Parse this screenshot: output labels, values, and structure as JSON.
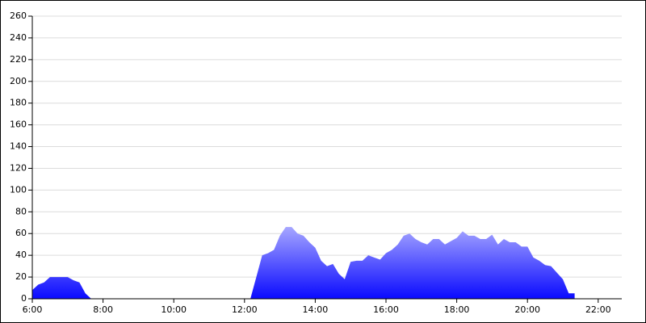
{
  "chart_data": {
    "type": "area",
    "color_top": "#a8a8ff",
    "color_bottom": "#0a0aff",
    "x": [
      360,
      370,
      380,
      390,
      400,
      410,
      420,
      430,
      440,
      450,
      460,
      730,
      740,
      750,
      760,
      770,
      780,
      790,
      800,
      810,
      820,
      830,
      840,
      850,
      860,
      870,
      880,
      890,
      900,
      910,
      920,
      930,
      940,
      950,
      960,
      970,
      980,
      990,
      1000,
      1010,
      1020,
      1030,
      1040,
      1050,
      1060,
      1070,
      1080,
      1090,
      1100,
      1110,
      1120,
      1130,
      1140,
      1150,
      1160,
      1170,
      1180,
      1190,
      1200,
      1210,
      1220,
      1230,
      1240,
      1250,
      1260,
      1270,
      1280
    ],
    "values": [
      8,
      13,
      15,
      20,
      20,
      20,
      20,
      17,
      15,
      5,
      0,
      0,
      20,
      40,
      42,
      45,
      58,
      66,
      66,
      60,
      58,
      52,
      47,
      35,
      30,
      32,
      23,
      18,
      34,
      35,
      35,
      40,
      38,
      36,
      42,
      45,
      50,
      58,
      60,
      55,
      52,
      50,
      55,
      55,
      50,
      53,
      56,
      62,
      58,
      58,
      55,
      55,
      59,
      50,
      55,
      52,
      52,
      48,
      48,
      38,
      35,
      31,
      30,
      24,
      18,
      5,
      5
    ],
    "xlim": [
      360,
      1360
    ],
    "ylim": [
      0,
      260
    ],
    "xticks": [
      {
        "value": 360,
        "label": "6:00"
      },
      {
        "value": 480,
        "label": "8:00"
      },
      {
        "value": 600,
        "label": "10:00"
      },
      {
        "value": 720,
        "label": "12:00"
      },
      {
        "value": 840,
        "label": "14:00"
      },
      {
        "value": 960,
        "label": "16:00"
      },
      {
        "value": 1080,
        "label": "18:00"
      },
      {
        "value": 1200,
        "label": "20:00"
      },
      {
        "value": 1320,
        "label": "22:00"
      }
    ],
    "yticks": [
      0,
      20,
      40,
      60,
      80,
      100,
      120,
      140,
      160,
      180,
      200,
      220,
      240,
      260
    ],
    "grid": true
  }
}
